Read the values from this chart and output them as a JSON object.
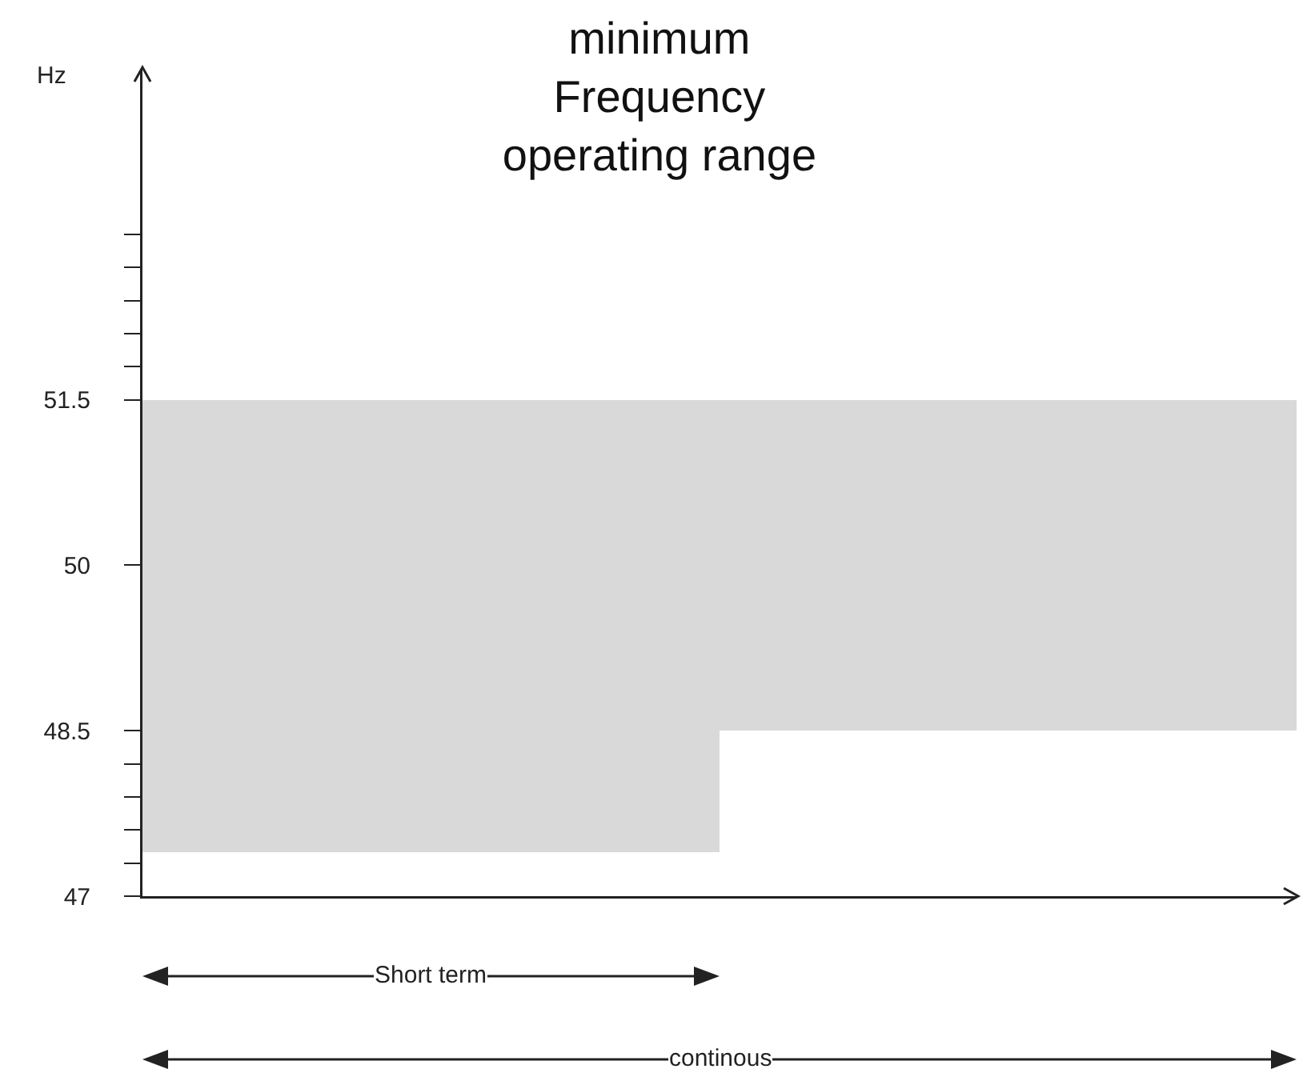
{
  "chart_data": {
    "type": "bar",
    "title": "minimum\nFrequency\noperating range",
    "ylabel": "Hz",
    "categories": [
      null,
      null
    ],
    "values": [
      4.1,
      3.0
    ],
    "base": [
      47.4,
      48.5
    ],
    "color": "#d9d9d9",
    "ylim": [
      47,
      54.5
    ],
    "yticks": [
      47,
      {
        "value": 47.3,
        "label": null
      },
      {
        "value": 47.6,
        "label": null
      },
      {
        "value": 47.9,
        "label": null
      },
      {
        "value": 48.2,
        "label": null
      },
      48.5,
      50,
      51.5,
      {
        "value": 51.8,
        "label": null
      },
      {
        "value": 52.1,
        "label": null
      },
      {
        "value": 52.4,
        "label": null
      },
      {
        "value": 52.7,
        "label": null
      },
      {
        "value": 53,
        "label": null
      }
    ],
    "tick_labels": "y",
    "annotations": [
      "Short term",
      "continous"
    ]
  }
}
